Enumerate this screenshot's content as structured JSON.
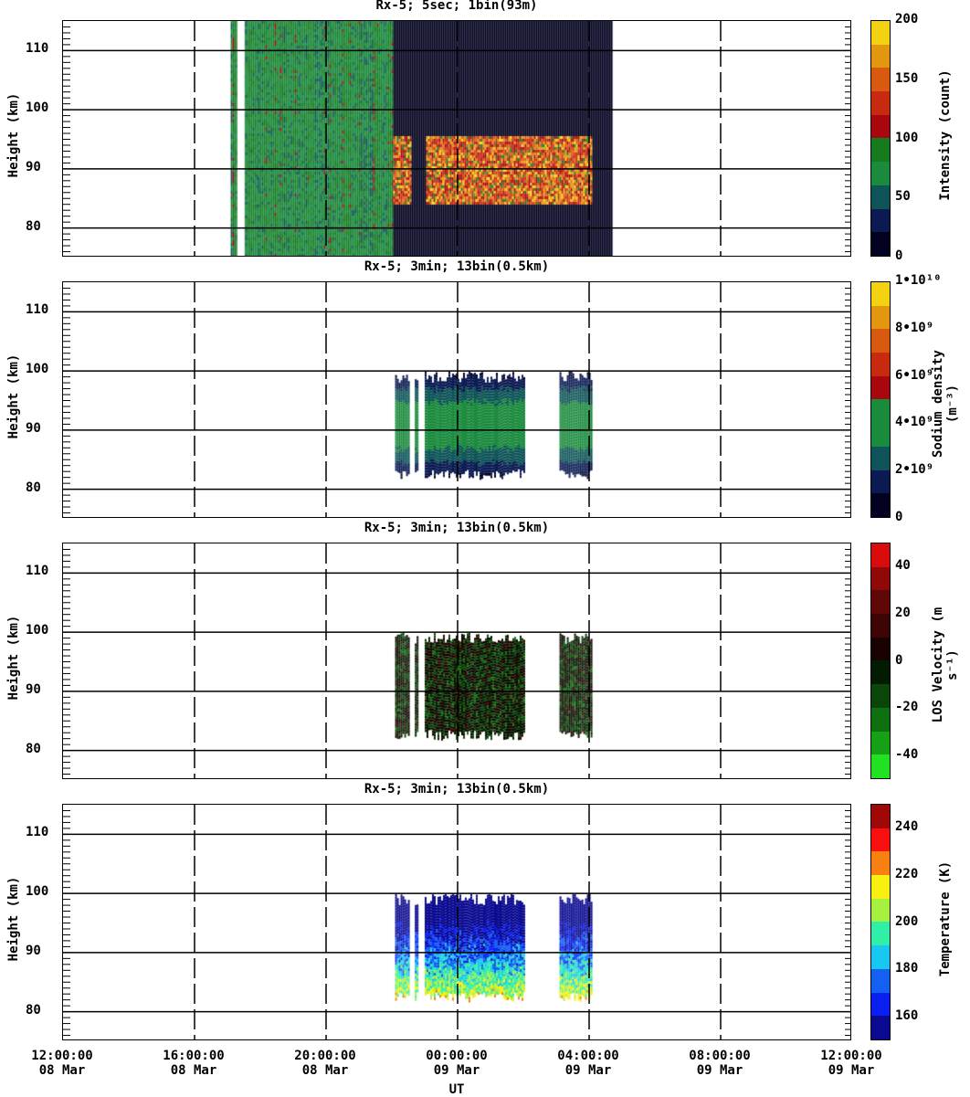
{
  "chart_data": {
    "type": "heatmap",
    "xlabel": "UT",
    "x_range_hours": [
      12,
      36
    ],
    "x_ticks": [
      {
        "h": 12,
        "time": "12:00:00",
        "date": "08 Mar"
      },
      {
        "h": 16,
        "time": "16:00:00",
        "date": "08 Mar"
      },
      {
        "h": 20,
        "time": "20:00:00",
        "date": "08 Mar"
      },
      {
        "h": 24,
        "time": "00:00:00",
        "date": "09 Mar"
      },
      {
        "h": 28,
        "time": "04:00:00",
        "date": "09 Mar"
      },
      {
        "h": 32,
        "time": "08:00:00",
        "date": "09 Mar"
      },
      {
        "h": 36,
        "time": "12:00:00",
        "date": "09 Mar"
      }
    ],
    "panels": [
      {
        "title": "Rx-5;  5sec; 1bin(93m)",
        "ylabel": "Height (km)",
        "ylim": [
          75,
          115
        ],
        "yticks": [
          "80",
          "90",
          "100",
          "110"
        ],
        "colorbar": {
          "label": "Intensity (count)",
          "ticks": [
            "0",
            "50",
            "100",
            "150",
            "200"
          ],
          "colors": [
            "#020220",
            "#0b1a52",
            "#0e5458",
            "#1a8a3c",
            "#177a1c",
            "#a8070d",
            "#c82a10",
            "#d85a10",
            "#e3960f",
            "#f3d212"
          ]
        },
        "kind": "intensity",
        "coverage_hours": [
          17.1,
          28.7
        ],
        "layer_km": [
          84,
          96
        ]
      },
      {
        "title": "Rx-5; 3min; 13bin(0.5km)",
        "ylabel": "Height (km)",
        "ylim": [
          75,
          115
        ],
        "yticks": [
          "80",
          "90",
          "100",
          "110"
        ],
        "colorbar": {
          "label": "Sodium density (m⁻³)",
          "ticks": [
            "0",
            "2•10⁹",
            "4•10⁹",
            "6•10⁹",
            "8•10⁹",
            "1•10¹⁰"
          ],
          "colors": [
            "#020220",
            "#0b1a52",
            "#0e5458",
            "#1a8a3c",
            "#1a8a3c",
            "#a8070d",
            "#c82a10",
            "#d85a10",
            "#e3960f",
            "#f3d212"
          ]
        },
        "kind": "density",
        "coverage_hours": [
          [
            22.1,
            22.5
          ],
          [
            22.7,
            22.8
          ],
          [
            23.0,
            26.0
          ],
          [
            27.1,
            28.1
          ]
        ],
        "layer_km": [
          82,
          100
        ]
      },
      {
        "title": "Rx-5; 3min; 13bin(0.5km)",
        "ylabel": "Height (km)",
        "ylim": [
          75,
          115
        ],
        "yticks": [
          "80",
          "90",
          "100",
          "110"
        ],
        "colorbar": {
          "label": "LOS Velocity (m s⁻¹)",
          "ticks": [
            "-40",
            "-20",
            "0",
            "20",
            "40"
          ],
          "colors": [
            "#22e022",
            "#16a016",
            "#0f7010",
            "#0a450a",
            "#031a03",
            "#1a0202",
            "#3e0505",
            "#600707",
            "#900909",
            "#d80c0c"
          ]
        },
        "kind": "velocity",
        "coverage_hours": [
          [
            22.1,
            22.5
          ],
          [
            22.7,
            22.8
          ],
          [
            23.0,
            26.0
          ],
          [
            27.1,
            28.1
          ]
        ],
        "layer_km": [
          82,
          100
        ]
      },
      {
        "title": "Rx-5; 3min; 13bin(0.5km)",
        "ylabel": "Height (km)",
        "ylim": [
          75,
          115
        ],
        "yticks": [
          "80",
          "90",
          "100",
          "110"
        ],
        "colorbar": {
          "label": "Temperature (K)",
          "ticks": [
            "160",
            "180",
            "200",
            "220",
            "240"
          ],
          "colors": [
            "#0a0a90",
            "#0a20f0",
            "#1460f0",
            "#18c8f0",
            "#30f0a8",
            "#a8f040",
            "#f8f010",
            "#f88010",
            "#f81010",
            "#a00808"
          ]
        },
        "kind": "temperature",
        "coverage_hours": [
          [
            22.1,
            22.5
          ],
          [
            22.7,
            22.8
          ],
          [
            23.0,
            26.0
          ],
          [
            27.1,
            28.1
          ]
        ],
        "layer_km": [
          82,
          100
        ]
      }
    ]
  }
}
